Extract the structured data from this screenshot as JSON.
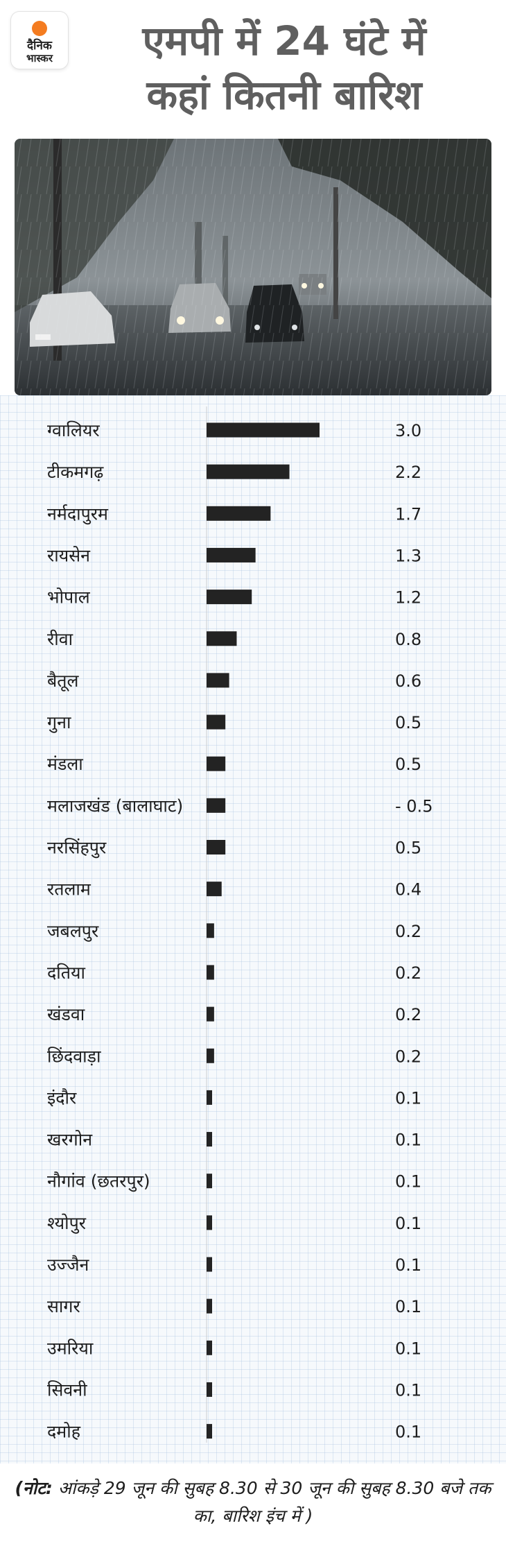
{
  "header": {
    "logo_line1": "दैनिक",
    "logo_line2": "भास्कर",
    "title_line1": "एमपी में 24 घंटे में",
    "title_line2": "कहां कितनी बारिश"
  },
  "photo": {
    "alt": "rain-street-photo"
  },
  "chart_data": {
    "type": "bar",
    "orientation": "horizontal",
    "categories": [
      "ग्वालियर",
      "टीकमगढ़",
      "नर्मदापुरम",
      "रायसेन",
      "भोपाल",
      "रीवा",
      "बैतूल",
      "गुना",
      "मंडला",
      "मलाजखंड (बालाघाट)",
      "नरसिंहपुर",
      "रतलाम",
      "जबलपुर",
      "दतिया",
      "खंडवा",
      "छिंदवाड़ा",
      "इंदौर",
      "खरगोन",
      "नौगांव (छतरपुर)",
      "श्योपुर",
      "उज्जैन",
      "सागर",
      "उमरिया",
      "सिवनी",
      "दमोह"
    ],
    "values": [
      3.0,
      2.2,
      1.7,
      1.3,
      1.2,
      0.8,
      0.6,
      0.5,
      0.5,
      0.5,
      0.5,
      0.4,
      0.2,
      0.2,
      0.2,
      0.2,
      0.1,
      0.1,
      0.1,
      0.1,
      0.1,
      0.1,
      0.1,
      0.1,
      0.1
    ],
    "value_labels": [
      "3.0",
      "2.2",
      "1.7",
      "1.3",
      "1.2",
      "0.8",
      "0.6",
      "0.5",
      "0.5",
      "- 0.5",
      "0.5",
      "0.4",
      "0.2",
      "0.2",
      "0.2",
      "0.2",
      "0.1",
      "0.1",
      "0.1",
      "0.1",
      "0.1",
      "0.1",
      "0.1",
      "0.1",
      "0.1"
    ],
    "title": "",
    "xlabel": "",
    "ylabel": "",
    "xlim": [
      0,
      3.0
    ],
    "bar_color": "#232323",
    "grid": true
  },
  "footnote": {
    "bold": "(नोट:",
    "text": " आंकड़े 29 जून की सुबह 8.30 से 30 जून की सुबह 8.30 बजे तक का, बारिश इंच में )"
  }
}
